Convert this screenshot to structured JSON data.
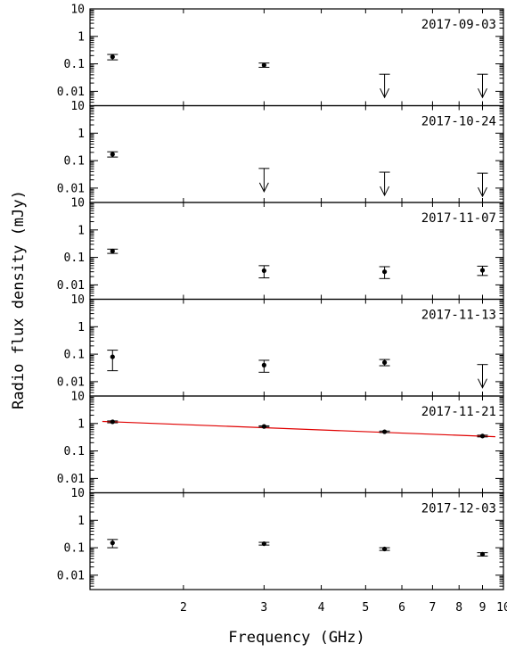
{
  "chart_data": {
    "type": "scatter",
    "xlabel": "Frequency (GHz)",
    "ylabel": "Radio flux density (mJy)",
    "x_scale": "log",
    "y_scale": "log",
    "xlim": [
      1.25,
      10
    ],
    "ylim": [
      0.003,
      10
    ],
    "x_ticks": [
      2,
      3,
      4,
      5,
      6,
      7,
      8,
      9,
      10
    ],
    "y_ticks": [
      0.01,
      0.1,
      1,
      10
    ],
    "y_tick_labels": [
      "0.01",
      "0.1",
      "1",
      "10"
    ],
    "grid": false,
    "panels": [
      {
        "date": "2017-09-03",
        "detections": [
          {
            "x": 1.4,
            "y": 0.18,
            "lo": 0.14,
            "hi": 0.22
          },
          {
            "x": 3.0,
            "y": 0.09,
            "lo": 0.075,
            "hi": 0.107
          }
        ],
        "upper_limits": [
          {
            "x": 5.5,
            "y": 0.042
          },
          {
            "x": 9.0,
            "y": 0.042
          }
        ]
      },
      {
        "date": "2017-10-24",
        "detections": [
          {
            "x": 1.4,
            "y": 0.17,
            "lo": 0.135,
            "hi": 0.21
          }
        ],
        "upper_limits": [
          {
            "x": 3.0,
            "y": 0.052
          },
          {
            "x": 5.5,
            "y": 0.038
          },
          {
            "x": 9.0,
            "y": 0.035
          }
        ]
      },
      {
        "date": "2017-11-07",
        "detections": [
          {
            "x": 1.4,
            "y": 0.17,
            "lo": 0.14,
            "hi": 0.2
          },
          {
            "x": 3.0,
            "y": 0.033,
            "lo": 0.018,
            "hi": 0.05
          },
          {
            "x": 5.5,
            "y": 0.03,
            "lo": 0.017,
            "hi": 0.046
          },
          {
            "x": 9.0,
            "y": 0.034,
            "lo": 0.022,
            "hi": 0.048
          }
        ],
        "upper_limits": []
      },
      {
        "date": "2017-11-13",
        "detections": [
          {
            "x": 1.4,
            "y": 0.08,
            "lo": 0.025,
            "hi": 0.14
          },
          {
            "x": 3.0,
            "y": 0.04,
            "lo": 0.022,
            "hi": 0.06
          },
          {
            "x": 5.5,
            "y": 0.05,
            "lo": 0.038,
            "hi": 0.064
          }
        ],
        "upper_limits": [
          {
            "x": 9.0,
            "y": 0.042
          }
        ]
      },
      {
        "date": "2017-11-21",
        "detections": [
          {
            "x": 1.4,
            "y": 1.15,
            "lo": 1.06,
            "hi": 1.24
          },
          {
            "x": 3.0,
            "y": 0.78,
            "lo": 0.74,
            "hi": 0.82
          },
          {
            "x": 5.5,
            "y": 0.5,
            "lo": 0.47,
            "hi": 0.53
          },
          {
            "x": 9.0,
            "y": 0.35,
            "lo": 0.325,
            "hi": 0.375
          }
        ],
        "upper_limits": [],
        "fit_line": {
          "x": [
            1.33,
            9.6
          ],
          "y": [
            1.19,
            0.33
          ]
        }
      },
      {
        "date": "2017-12-03",
        "detections": [
          {
            "x": 1.4,
            "y": 0.15,
            "lo": 0.1,
            "hi": 0.2
          },
          {
            "x": 3.0,
            "y": 0.14,
            "lo": 0.125,
            "hi": 0.157
          },
          {
            "x": 5.5,
            "y": 0.09,
            "lo": 0.08,
            "hi": 0.1
          },
          {
            "x": 9.0,
            "y": 0.058,
            "lo": 0.05,
            "hi": 0.066
          }
        ],
        "upper_limits": []
      }
    ],
    "colors": {
      "points": "#000000",
      "fit_line": "#e00000"
    }
  }
}
